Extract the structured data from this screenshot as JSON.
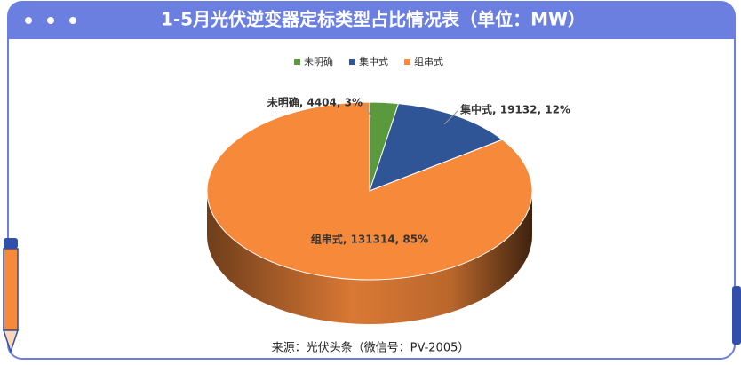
{
  "chart_data": {
    "type": "pie3d",
    "title": "1-5月光伏逆变器定标类型占比情况表（单位：MW）",
    "categories": [
      "未明确",
      "集中式",
      "组串式"
    ],
    "values": [
      4404,
      19132,
      131314
    ],
    "value_labels": [
      "未明确, 4404, 3%",
      "集中式, 19132, 12%",
      "组串式, 131314, 85%"
    ],
    "colors": [
      "#5b9a3c",
      "#2f5597",
      "#f7893b"
    ],
    "legend": "top",
    "source": "来源：光伏头条（微信号：PV-2005）"
  }
}
